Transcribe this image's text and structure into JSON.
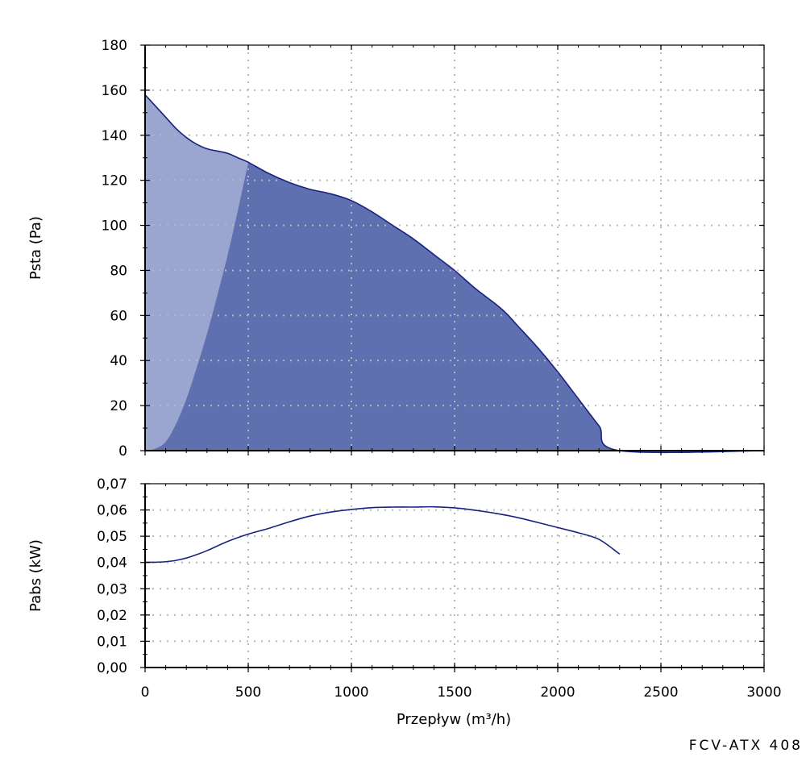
{
  "model_label": "FCV-ATX 408",
  "colors": {
    "curve": "#1a2280",
    "fill_dark": "#5f70b0",
    "fill_light": "#9aa6cf",
    "grid": "#b8b8b8",
    "axis": "#000000"
  },
  "chart_data": [
    {
      "type": "area",
      "ylabel": "Psta (Pa)",
      "xlabel": "",
      "xlim": [
        0,
        3000
      ],
      "ylim": [
        0,
        180
      ],
      "x_ticks": [
        0,
        500,
        1000,
        1500,
        2000,
        2500,
        3000
      ],
      "y_ticks": [
        0,
        20,
        40,
        60,
        80,
        100,
        120,
        140,
        160,
        180
      ],
      "y_tick_labels": [
        "0",
        "20",
        "40",
        "60",
        "80",
        "100",
        "120",
        "140",
        "160",
        "180"
      ],
      "grid": true,
      "series": [
        {
          "x": [
            0,
            50,
            100,
            150,
            200,
            250,
            300,
            350,
            400,
            450,
            500,
            600,
            700,
            800,
            900,
            1000,
            1100,
            1200,
            1300,
            1400,
            1500,
            1600,
            1700,
            1750,
            1800,
            1900,
            2000,
            2100,
            2200,
            2300,
            3000
          ],
          "y": [
            158,
            153,
            148,
            143,
            139,
            136,
            134,
            133,
            132,
            130,
            128,
            123,
            119,
            116,
            114,
            111,
            106,
            100,
            94,
            87,
            80,
            72,
            65,
            61,
            56,
            46,
            35,
            23,
            11,
            0,
            0
          ]
        },
        {
          "x": [
            0,
            50,
            100,
            150,
            200,
            250,
            300,
            350,
            400,
            450,
            500
          ],
          "y": [
            0,
            1,
            4,
            12,
            23,
            37,
            52,
            69,
            87,
            107,
            128
          ]
        }
      ]
    },
    {
      "type": "line",
      "ylabel": "Pabs (kW)",
      "xlabel": "Przepływ (m³/h)",
      "xlim": [
        0,
        3000
      ],
      "ylim": [
        0,
        0.07
      ],
      "x_ticks": [
        0,
        500,
        1000,
        1500,
        2000,
        2500,
        3000
      ],
      "x_tick_labels": [
        "0",
        "500",
        "1000",
        "1500",
        "2000",
        "2500",
        "3000"
      ],
      "y_ticks": [
        0,
        0.01,
        0.02,
        0.03,
        0.04,
        0.05,
        0.06,
        0.07
      ],
      "y_tick_labels": [
        "0,00",
        "0,01",
        "0,02",
        "0,03",
        "0,04",
        "0,05",
        "0,06",
        "0,07"
      ],
      "grid": true,
      "series": [
        {
          "x": [
            0,
            50,
            100,
            150,
            200,
            250,
            300,
            400,
            500,
            600,
            700,
            800,
            900,
            1000,
            1100,
            1200,
            1300,
            1400,
            1500,
            1600,
            1700,
            1800,
            1900,
            2000,
            2100,
            2200,
            2300
          ],
          "y": [
            0.0401,
            0.0401,
            0.0403,
            0.0408,
            0.0417,
            0.043,
            0.0445,
            0.048,
            0.0508,
            0.053,
            0.0555,
            0.0577,
            0.0592,
            0.0602,
            0.0609,
            0.0611,
            0.0611,
            0.0612,
            0.0608,
            0.0599,
            0.0587,
            0.0572,
            0.0553,
            0.0533,
            0.0513,
            0.0488,
            0.0432
          ]
        }
      ]
    }
  ]
}
